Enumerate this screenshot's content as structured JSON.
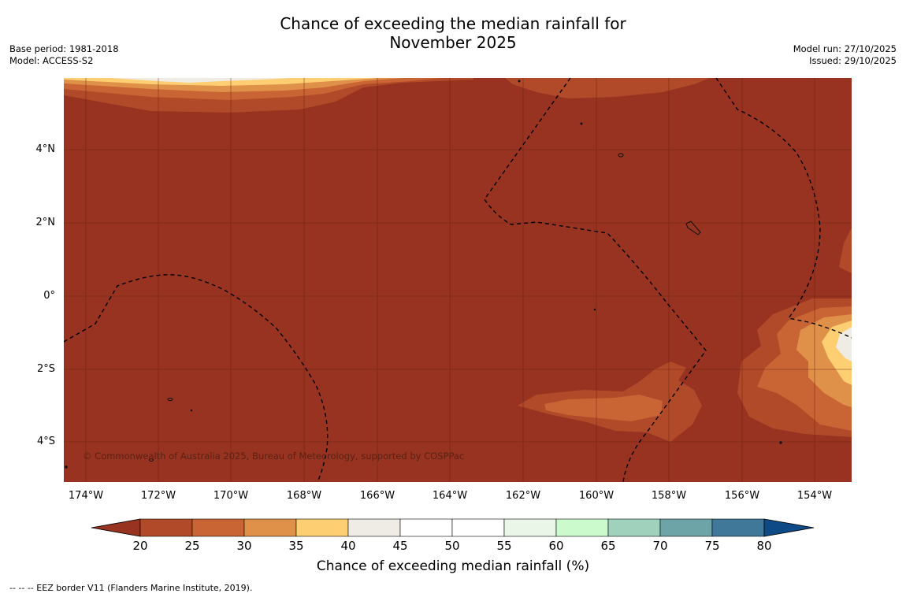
{
  "map": {
    "title_line1": "Chance of exceeding the median rainfall for",
    "title_line2": "November 2025",
    "base_period": "Base period: 1981-2018",
    "model": "Model: ACCESS-S2",
    "model_run": "Model run: 27/10/2025",
    "issued": "Issued: 29/10/2025",
    "copyright": "© Commonwealth of Australia 2025, Bureau of Meteorology, supported by COSPPac",
    "footer": "--  --  -- EEZ border V11 (Flanders Marine Institute, 2019).",
    "lat_labels": [
      "4°N",
      "2°N",
      "0°",
      "2°S",
      "4°S"
    ],
    "lon_labels": [
      "174°W",
      "172°W",
      "170°W",
      "168°W",
      "166°W",
      "164°W",
      "162°W",
      "160°W",
      "158°W",
      "156°W",
      "154°W"
    ],
    "colorbar": {
      "title": "Chance of exceeding median rainfall (%)",
      "ticks": [
        "20",
        "25",
        "30",
        "35",
        "40",
        "45",
        "50",
        "55",
        "60",
        "65",
        "70",
        "75",
        "80"
      ],
      "under_color": "#973320",
      "over_color": "#0e4a86",
      "bins": [
        {
          "range": "20-25",
          "color": "#b14a28"
        },
        {
          "range": "25-30",
          "color": "#c96534"
        },
        {
          "range": "30-35",
          "color": "#df9149"
        },
        {
          "range": "35-40",
          "color": "#fdcf72"
        },
        {
          "range": "40-45",
          "color": "#efebe5"
        },
        {
          "range": "45-50",
          "color": "#ffffff"
        },
        {
          "range": "50-55",
          "color": "#ffffff"
        },
        {
          "range": "55-60",
          "color": "#e9f6e8"
        },
        {
          "range": "60-65",
          "color": "#cbfacc"
        },
        {
          "range": "65-70",
          "color": "#9fd1bd"
        },
        {
          "range": "70-75",
          "color": "#6da4a7"
        },
        {
          "range": "75-80",
          "color": "#3f7898"
        }
      ]
    }
  }
}
